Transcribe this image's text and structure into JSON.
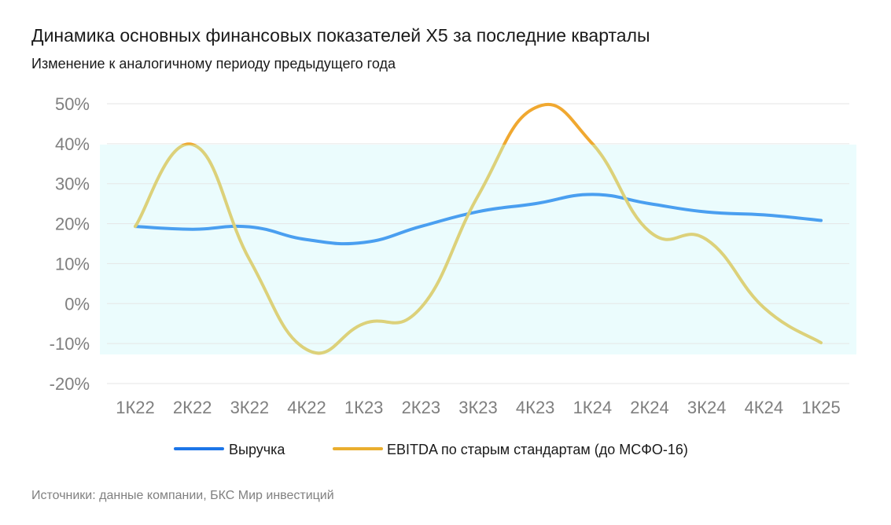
{
  "header": {
    "title": "Динамика основных финансовых показателей X5 за последние кварталы",
    "subtitle": "Изменение к аналогичному периоду предыдущего года"
  },
  "footer": {
    "source": "Источники: данные компании, БКС Мир инвестиций"
  },
  "colors": {
    "revenue": "#4a9ff0",
    "ebitda": "#dcd17a",
    "ebitda_highlight": "#f0a830",
    "legend_revenue": "#1c75e8",
    "legend_ebitda": "#eaae2e",
    "band": "#ebfcfd",
    "grid": "#e6e6e6"
  },
  "chart_data": {
    "type": "line",
    "title": "Динамика основных финансовых показателей X5 за последние кварталы",
    "subtitle": "Изменение к аналогичному периоду предыдущего года",
    "categories": [
      "1К22",
      "2К22",
      "3К22",
      "4К22",
      "1К23",
      "2К23",
      "3К23",
      "4К23",
      "1К24",
      "2К24",
      "3К24",
      "4К24",
      "1К25"
    ],
    "y_ticks": [
      "50%",
      "40%",
      "30%",
      "20%",
      "10%",
      "0%",
      "-10%",
      "-20%"
    ],
    "ylim": [
      -20,
      50
    ],
    "grid": true,
    "legend_position": "bottom",
    "series": [
      {
        "name": "Выручка",
        "values": [
          19.3,
          18.6,
          19.2,
          16.0,
          15.3,
          19.3,
          23.0,
          25.0,
          27.3,
          25.0,
          22.9,
          22.2,
          20.8
        ]
      },
      {
        "name": "EBITDA по старым стандартам (до МСФО-16)",
        "values": [
          19.3,
          39.8,
          11.0,
          -11.5,
          -5.0,
          -1.0,
          27.0,
          49.0,
          40.0,
          18.0,
          16.0,
          -1.0,
          -9.8
        ]
      }
    ]
  }
}
